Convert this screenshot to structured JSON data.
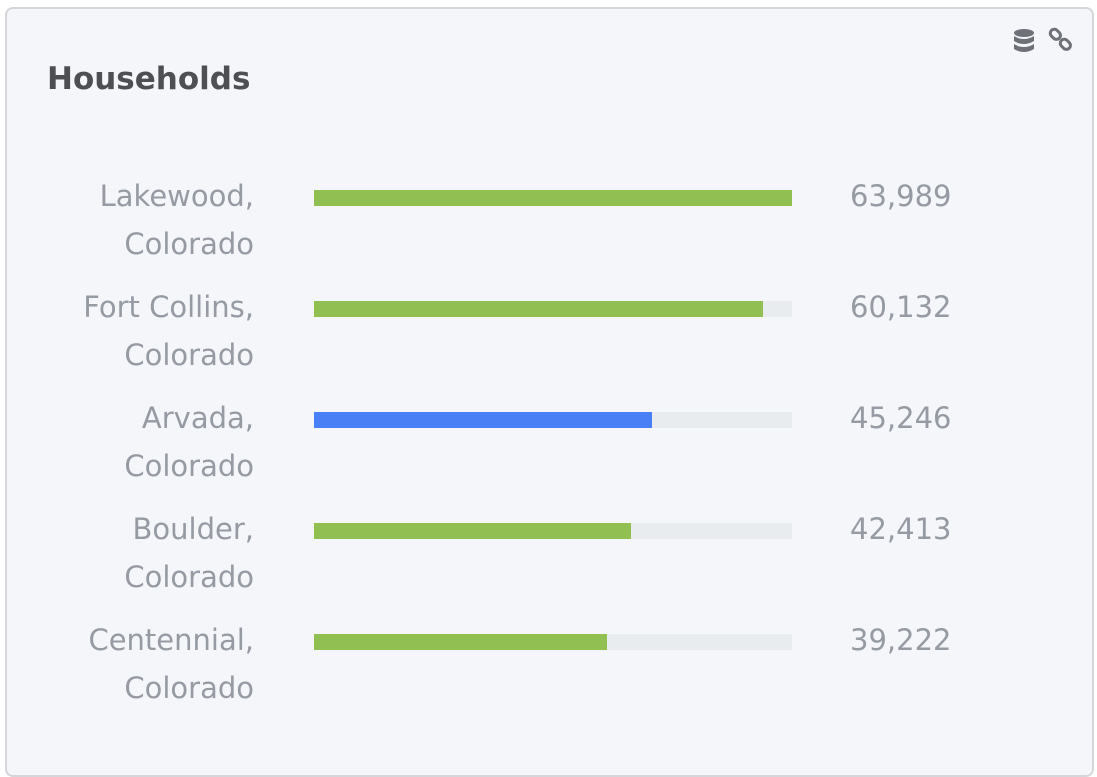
{
  "chart_data": {
    "type": "bar",
    "orientation": "horizontal",
    "title": "Households",
    "categories": [
      "Lakewood, Colorado",
      "Fort Collins, Colorado",
      "Arvada, Colorado",
      "Boulder, Colorado",
      "Centennial, Colorado"
    ],
    "values": [
      63989,
      60132,
      45246,
      42413,
      39222
    ],
    "value_labels": [
      "63,989",
      "60,132",
      "45,246",
      "42,413",
      "39,222"
    ],
    "colors": [
      "#92bf52",
      "#92bf52",
      "#4a80f5",
      "#92bf52",
      "#92bf52"
    ],
    "track_color": "#e9ecef"
  }
}
